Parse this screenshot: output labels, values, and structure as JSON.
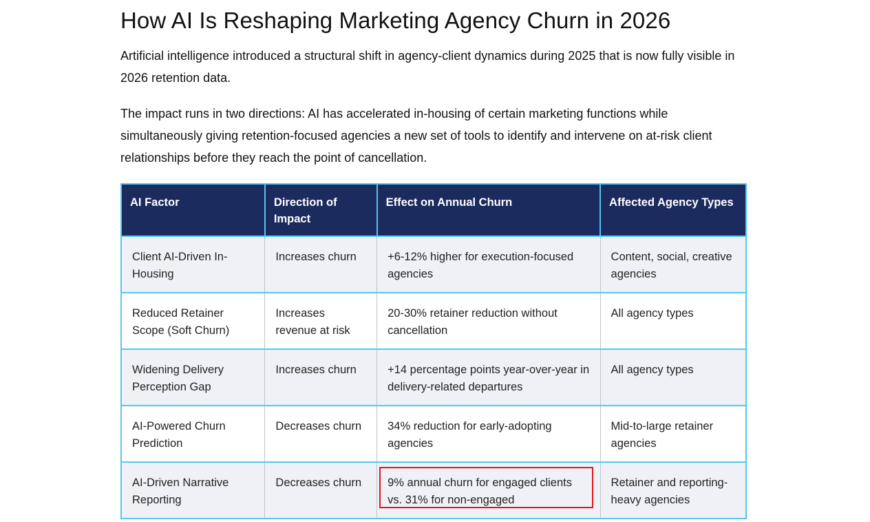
{
  "article": {
    "title": "How AI Is Reshaping Marketing Agency Churn in 2026",
    "paragraphs": [
      "Artificial intelligence introduced a structural shift in agency-client dynamics during 2025 that is now fully visible in 2026 retention data.",
      "The impact runs in two directions: AI has accelerated in-housing of certain marketing functions while simultaneously giving retention-focused agencies a new set of tools to identify and intervene on at-risk client relationships before they reach the point of cancellation."
    ]
  },
  "table": {
    "headers": [
      "AI Factor",
      "Direction of Impact",
      "Effect on Annual Churn",
      "Affected Agency Types"
    ],
    "rows": [
      [
        "Client AI-Driven In-Housing",
        "Increases churn",
        "+6-12% higher for execution-focused agencies",
        "Content, social, creative agencies"
      ],
      [
        "Reduced Retainer Scope (Soft Churn)",
        "Increases revenue at risk",
        "20-30% retainer reduction without cancellation",
        "All agency types"
      ],
      [
        "Widening Delivery Perception Gap",
        "Increases churn",
        "+14 percentage points year-over-year in delivery-related departures",
        "All agency types"
      ],
      [
        "AI-Powered Churn Prediction",
        "Decreases churn",
        "34% reduction for early-adopting agencies",
        "Mid-to-large retainer agencies"
      ],
      [
        "AI-Driven Narrative Reporting",
        "Decreases churn",
        "9% annual churn for engaged clients vs. 31% for non-engaged",
        "Retainer and reporting-heavy agencies"
      ]
    ]
  },
  "colors": {
    "header_bg": "#1c2b5e",
    "border_accent": "#4fc9ef",
    "highlight_border": "#e0151b",
    "row_stripe": "#f0f1f6"
  }
}
